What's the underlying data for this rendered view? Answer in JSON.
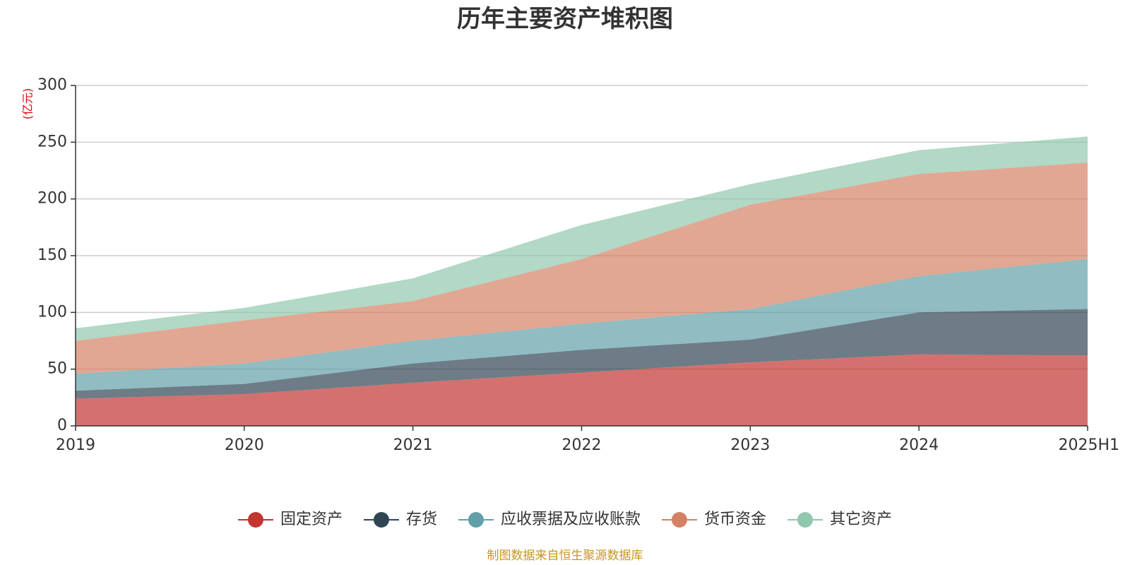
{
  "chart_data": {
    "type": "area",
    "stacked": true,
    "title": "历年主要资产堆积图",
    "unit_label": "(亿元)",
    "categories": [
      "2019",
      "2020",
      "2021",
      "2022",
      "2023",
      "2024",
      "2025H1"
    ],
    "ylim": [
      0,
      300
    ],
    "yticks": [
      "0",
      "50",
      "100",
      "150",
      "200",
      "250",
      "300"
    ],
    "grid": true,
    "legend_position": "bottom",
    "series": [
      {
        "name": "固定资产",
        "color": "#c23531",
        "values": [
          24,
          28,
          38,
          47,
          56,
          63,
          62
        ]
      },
      {
        "name": "存货",
        "color": "#2f4554",
        "values": [
          7,
          9,
          17,
          20,
          20,
          37,
          41
        ]
      },
      {
        "name": "应收票据及应收账款",
        "color": "#61a0a8",
        "values": [
          15,
          18,
          20,
          23,
          27,
          32,
          44
        ]
      },
      {
        "name": "货币资金",
        "color": "#d48265",
        "values": [
          29,
          38,
          35,
          57,
          92,
          90,
          85
        ]
      },
      {
        "name": "其它资产",
        "color": "#91c7ae",
        "values": [
          11,
          11,
          20,
          30,
          18,
          21,
          23
        ]
      }
    ],
    "source": "制图数据来自恒生聚源数据库"
  }
}
